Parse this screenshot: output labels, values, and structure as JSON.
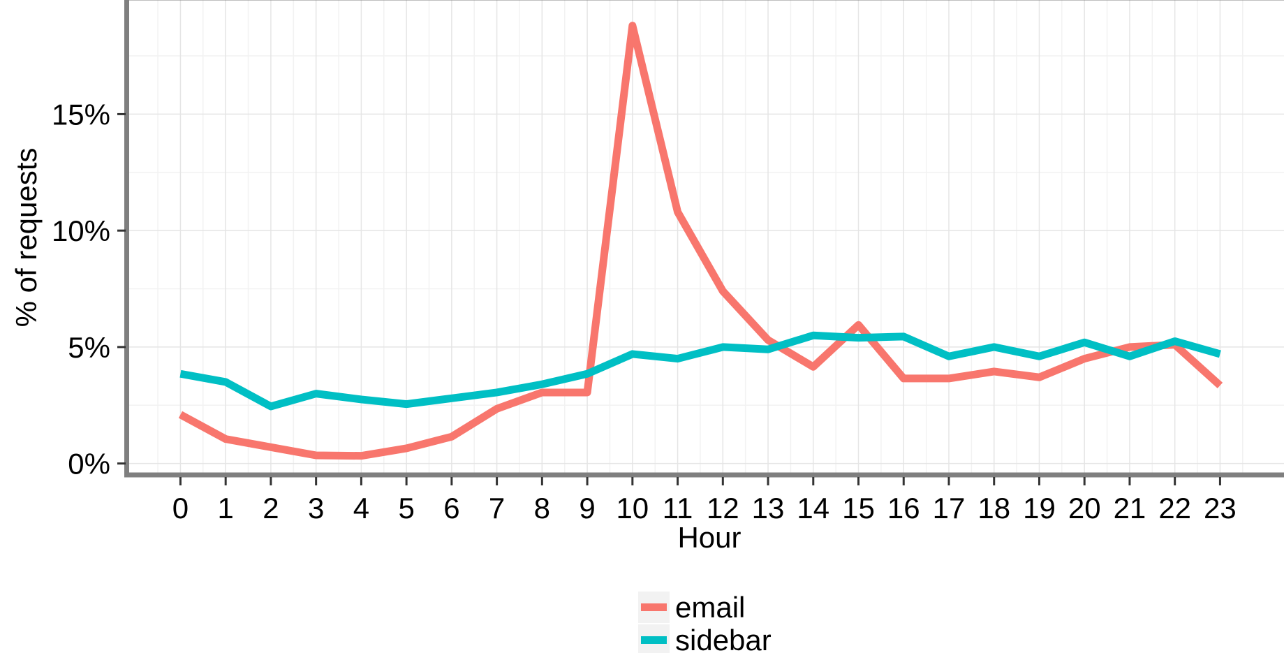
{
  "chart_data": {
    "type": "line",
    "title": "",
    "xlabel": "Hour",
    "ylabel": "% of requests",
    "x": [
      0,
      1,
      2,
      3,
      4,
      5,
      6,
      7,
      8,
      9,
      10,
      11,
      12,
      13,
      14,
      15,
      16,
      17,
      18,
      19,
      20,
      21,
      22,
      23
    ],
    "xlim": [
      -1.15,
      24.6
    ],
    "ylim": [
      -0.4,
      19.9
    ],
    "yticks": [
      0,
      5,
      10,
      15
    ],
    "ytick_labels": [
      "0%",
      "5%",
      "10%",
      "15%"
    ],
    "grid": true,
    "legend_position": "bottom",
    "series": [
      {
        "name": "email",
        "color": "#F8766D",
        "values": [
          2.1,
          1.05,
          0.7,
          0.35,
          0.33,
          0.65,
          1.15,
          2.35,
          3.05,
          3.05,
          18.8,
          10.8,
          7.4,
          5.3,
          4.15,
          5.95,
          3.65,
          3.65,
          3.95,
          3.7,
          4.5,
          5.0,
          5.1,
          3.35
        ]
      },
      {
        "name": "sidebar",
        "color": "#00BFC4",
        "values": [
          3.85,
          3.5,
          2.45,
          3.0,
          2.75,
          2.55,
          2.8,
          3.05,
          3.4,
          3.85,
          4.7,
          4.5,
          5.0,
          4.9,
          5.5,
          5.4,
          5.45,
          4.6,
          5.0,
          4.6,
          5.2,
          4.6,
          5.25,
          4.7
        ]
      }
    ]
  }
}
